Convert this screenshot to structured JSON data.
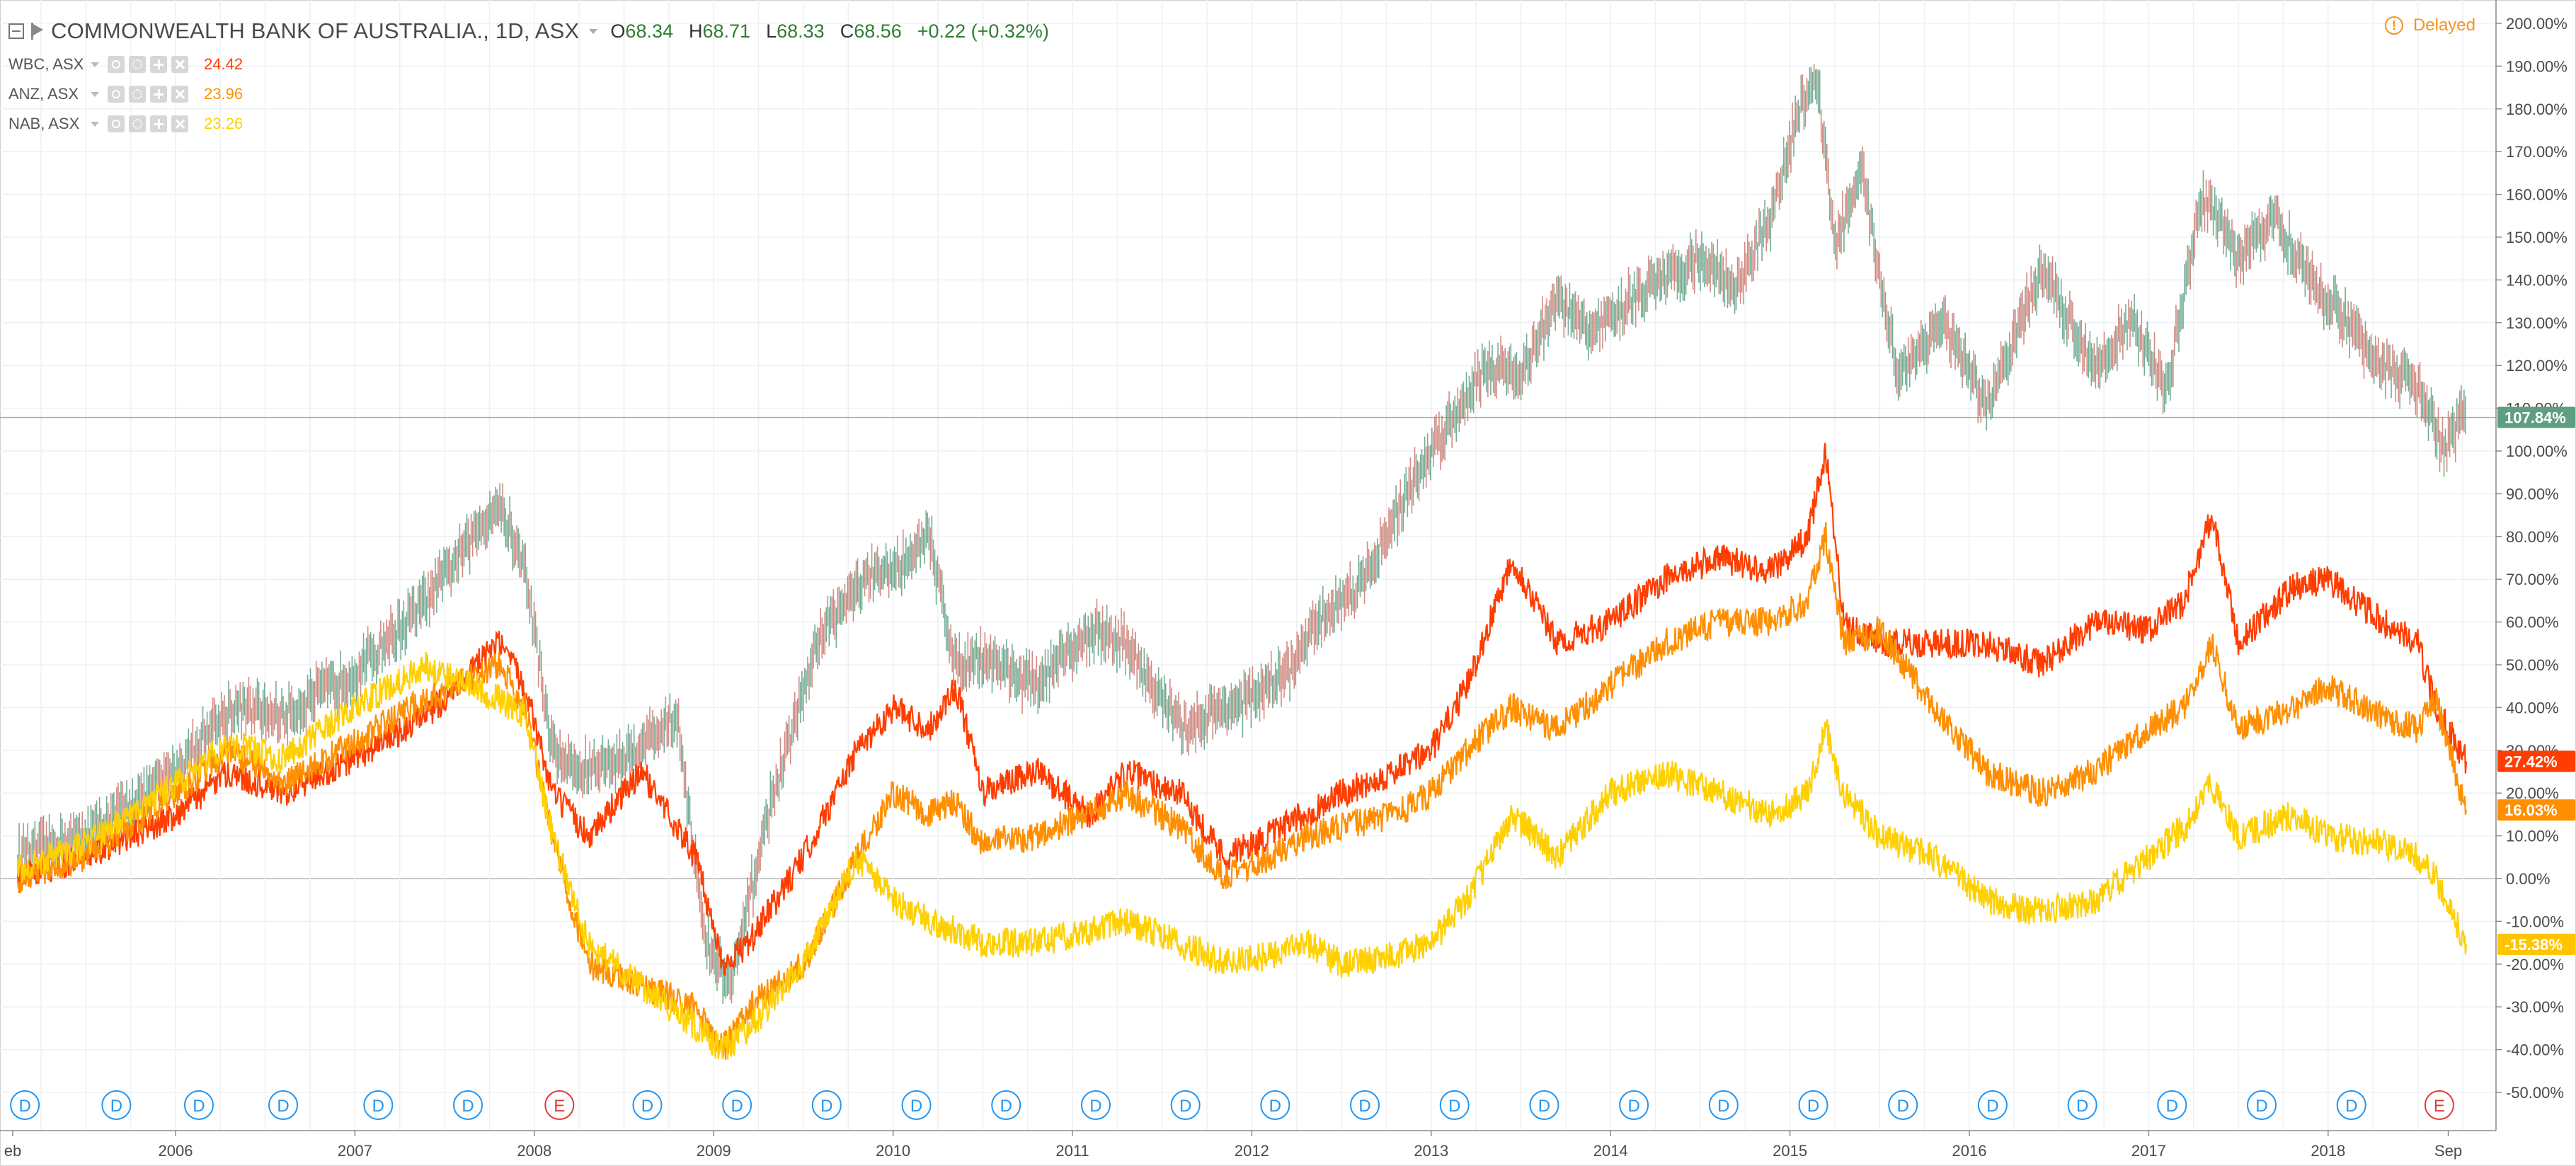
{
  "header": {
    "main_symbol": "COMMONWEALTH BANK OF AUSTRALIA., 1D, ASX",
    "open_label": "O",
    "open": "68.34",
    "high_label": "H",
    "high": "68.71",
    "low_label": "L",
    "low": "68.33",
    "close_label": "C",
    "close": "68.56",
    "change": "+0.22 (+0.32%)",
    "delayed": "Delayed"
  },
  "comparisons": [
    {
      "name": "WBC, ASX",
      "value": "24.42",
      "color": "#ff3d00"
    },
    {
      "name": "ANZ, ASX",
      "value": "23.96",
      "color": "#ff8f00"
    },
    {
      "name": "NAB, ASX",
      "value": "23.26",
      "color": "#ffd000"
    }
  ],
  "price_axis": {
    "ticks": [
      "200.00%",
      "190.00%",
      "180.00%",
      "170.00%",
      "160.00%",
      "150.00%",
      "140.00%",
      "130.00%",
      "120.00%",
      "110.00%",
      "100.00%",
      "90.00%",
      "80.00%",
      "70.00%",
      "60.00%",
      "50.00%",
      "40.00%",
      "30.00%",
      "20.00%",
      "10.00%",
      "0.00%",
      "-10.00%",
      "-20.00%",
      "-30.00%",
      "-40.00%",
      "-50.00%"
    ],
    "labels": [
      {
        "text": "107.84%",
        "value": 107.84,
        "color": "#5e9e82"
      },
      {
        "text": "27.42%",
        "value": 27.42,
        "color": "#ff3d00"
      },
      {
        "text": "16.03%",
        "value": 16.03,
        "color": "#ff8f00"
      },
      {
        "text": "-15.38%",
        "value": -15.38,
        "color": "#ffc400"
      }
    ]
  },
  "time_axis": {
    "labels": [
      {
        "text": "eb",
        "t": 2005.12
      },
      {
        "text": "2006",
        "t": 2006.0
      },
      {
        "text": "2007",
        "t": 2007.0
      },
      {
        "text": "2008",
        "t": 2008.0
      },
      {
        "text": "2009",
        "t": 2009.0
      },
      {
        "text": "2010",
        "t": 2010.0
      },
      {
        "text": "2011",
        "t": 2011.0
      },
      {
        "text": "2012",
        "t": 2012.0
      },
      {
        "text": "2013",
        "t": 2013.0
      },
      {
        "text": "2014",
        "t": 2014.0
      },
      {
        "text": "2015",
        "t": 2015.0
      },
      {
        "text": "2016",
        "t": 2016.0
      },
      {
        "text": "2017",
        "t": 2017.0
      },
      {
        "text": "2018",
        "t": 2018.0
      },
      {
        "text": "Sep",
        "t": 2018.67
      }
    ]
  },
  "events": [
    {
      "type": "D",
      "t": 2005.16
    },
    {
      "type": "D",
      "t": 2005.67
    },
    {
      "type": "D",
      "t": 2006.13
    },
    {
      "type": "D",
      "t": 2006.6
    },
    {
      "type": "D",
      "t": 2007.13
    },
    {
      "type": "D",
      "t": 2007.63
    },
    {
      "type": "E",
      "t": 2008.14
    },
    {
      "type": "D",
      "t": 2008.63
    },
    {
      "type": "D",
      "t": 2009.13
    },
    {
      "type": "D",
      "t": 2009.63
    },
    {
      "type": "D",
      "t": 2010.13
    },
    {
      "type": "D",
      "t": 2010.63
    },
    {
      "type": "D",
      "t": 2011.13
    },
    {
      "type": "D",
      "t": 2011.63
    },
    {
      "type": "D",
      "t": 2012.13
    },
    {
      "type": "D",
      "t": 2012.63
    },
    {
      "type": "D",
      "t": 2013.13
    },
    {
      "type": "D",
      "t": 2013.63
    },
    {
      "type": "D",
      "t": 2014.13
    },
    {
      "type": "D",
      "t": 2014.63
    },
    {
      "type": "D",
      "t": 2015.13
    },
    {
      "type": "D",
      "t": 2015.63
    },
    {
      "type": "D",
      "t": 2016.13
    },
    {
      "type": "D",
      "t": 2016.63
    },
    {
      "type": "D",
      "t": 2017.13
    },
    {
      "type": "D",
      "t": 2017.63
    },
    {
      "type": "D",
      "t": 2018.13
    },
    {
      "type": "E",
      "t": 2018.62
    }
  ],
  "chart_data": {
    "type": "line",
    "scale": "percent change from start",
    "x_range": [
      2005.1,
      2018.77
    ],
    "ylim": [
      -53,
      204
    ],
    "grid": true,
    "baseline": 0,
    "series": [
      {
        "name": "COMMONWEALTH BANK OF AUSTRALIA., 1D, ASX",
        "style": "candles",
        "color": "#7f7f7f",
        "x": [
          2005.12,
          2005.5,
          2006.0,
          2006.3,
          2006.6,
          2007.0,
          2007.4,
          2007.8,
          2007.95,
          2008.1,
          2008.25,
          2008.5,
          2008.8,
          2008.95,
          2009.1,
          2009.3,
          2009.6,
          2009.85,
          2010.0,
          2010.2,
          2010.35,
          2010.5,
          2010.8,
          2011.1,
          2011.3,
          2011.6,
          2011.85,
          2012.0,
          2012.2,
          2012.4,
          2012.6,
          2012.8,
          2013.0,
          2013.3,
          2013.5,
          2013.7,
          2013.9,
          2014.2,
          2014.5,
          2014.7,
          2014.9,
          2015.05,
          2015.15,
          2015.25,
          2015.4,
          2015.6,
          2015.85,
          2016.1,
          2016.4,
          2016.7,
          2016.9,
          2017.1,
          2017.3,
          2017.5,
          2017.7,
          2017.9,
          2018.1,
          2018.3,
          2018.5,
          2018.65,
          2018.77
        ],
        "y": [
          5,
          10,
          25,
          40,
          38,
          48,
          65,
          88,
          72,
          30,
          25,
          28,
          38,
          -15,
          -25,
          15,
          58,
          70,
          72,
          80,
          50,
          52,
          45,
          58,
          55,
          35,
          40,
          42,
          48,
          62,
          68,
          85,
          100,
          120,
          118,
          135,
          128,
          138,
          145,
          138,
          155,
          180,
          188,
          148,
          165,
          118,
          130,
          110,
          142,
          120,
          130,
          115,
          160,
          145,
          155,
          140,
          130,
          120,
          115,
          100,
          110
        ]
      },
      {
        "name": "WBC, ASX",
        "color": "#ff3d00",
        "x": [
          2005.12,
          2005.5,
          2006.0,
          2006.3,
          2006.6,
          2007.0,
          2007.4,
          2007.8,
          2007.95,
          2008.1,
          2008.3,
          2008.6,
          2008.9,
          2009.05,
          2009.2,
          2009.5,
          2009.8,
          2010.0,
          2010.2,
          2010.35,
          2010.5,
          2010.8,
          2011.1,
          2011.3,
          2011.6,
          2011.85,
          2012.1,
          2012.3,
          2012.5,
          2012.8,
          2013.0,
          2013.2,
          2013.45,
          2013.7,
          2014.0,
          2014.3,
          2014.6,
          2014.9,
          2015.1,
          2015.2,
          2015.3,
          2015.5,
          2015.8,
          2016.1,
          2016.4,
          2016.7,
          2017.0,
          2017.2,
          2017.35,
          2017.5,
          2017.8,
          2018.0,
          2018.3,
          2018.5,
          2018.6,
          2018.77
        ],
        "y": [
          0,
          5,
          15,
          25,
          20,
          28,
          38,
          55,
          45,
          20,
          10,
          25,
          5,
          -20,
          -15,
          5,
          30,
          40,
          35,
          45,
          20,
          25,
          15,
          25,
          20,
          5,
          10,
          15,
          20,
          25,
          30,
          45,
          75,
          55,
          60,
          70,
          75,
          72,
          80,
          100,
          60,
          55,
          55,
          55,
          50,
          60,
          58,
          65,
          85,
          55,
          68,
          70,
          60,
          55,
          40,
          27.42
        ]
      },
      {
        "name": "ANZ, ASX",
        "color": "#ff8f00",
        "x": [
          2005.12,
          2005.5,
          2006.0,
          2006.3,
          2006.6,
          2007.0,
          2007.4,
          2007.8,
          2007.95,
          2008.1,
          2008.3,
          2008.6,
          2008.9,
          2009.05,
          2009.2,
          2009.5,
          2009.8,
          2010.0,
          2010.2,
          2010.35,
          2010.5,
          2010.8,
          2011.1,
          2011.3,
          2011.6,
          2011.85,
          2012.1,
          2012.3,
          2012.5,
          2012.8,
          2013.0,
          2013.2,
          2013.45,
          2013.7,
          2014.0,
          2014.3,
          2014.6,
          2014.9,
          2015.1,
          2015.2,
          2015.3,
          2015.5,
          2015.8,
          2016.1,
          2016.4,
          2016.7,
          2017.0,
          2017.2,
          2017.35,
          2017.5,
          2017.8,
          2018.0,
          2018.3,
          2018.5,
          2018.6,
          2018.77
        ],
        "y": [
          0,
          5,
          20,
          30,
          22,
          32,
          42,
          50,
          40,
          10,
          -20,
          -25,
          -30,
          -40,
          -30,
          -20,
          5,
          20,
          15,
          18,
          8,
          10,
          15,
          20,
          12,
          0,
          5,
          10,
          12,
          15,
          20,
          30,
          40,
          35,
          45,
          55,
          60,
          60,
          65,
          80,
          55,
          58,
          40,
          25,
          20,
          25,
          35,
          40,
          55,
          35,
          40,
          45,
          38,
          35,
          42,
          16.03
        ]
      },
      {
        "name": "NAB, ASX",
        "color": "#ffd000",
        "x": [
          2005.12,
          2005.5,
          2006.0,
          2006.3,
          2006.6,
          2007.0,
          2007.4,
          2007.8,
          2007.95,
          2008.1,
          2008.3,
          2008.6,
          2008.9,
          2009.05,
          2009.2,
          2009.5,
          2009.8,
          2010.0,
          2010.2,
          2010.35,
          2010.5,
          2010.8,
          2011.1,
          2011.3,
          2011.6,
          2011.85,
          2012.1,
          2012.3,
          2012.5,
          2012.8,
          2013.0,
          2013.2,
          2013.45,
          2013.7,
          2014.0,
          2014.3,
          2014.6,
          2014.9,
          2015.1,
          2015.2,
          2015.3,
          2015.5,
          2015.8,
          2016.1,
          2016.4,
          2016.7,
          2017.0,
          2017.2,
          2017.35,
          2017.5,
          2017.8,
          2018.0,
          2018.3,
          2018.5,
          2018.6,
          2018.77
        ],
        "y": [
          2,
          8,
          22,
          32,
          28,
          40,
          50,
          42,
          38,
          10,
          -15,
          -25,
          -35,
          -40,
          -35,
          -20,
          5,
          -5,
          -10,
          -12,
          -15,
          -15,
          -12,
          -10,
          -15,
          -20,
          -18,
          -15,
          -20,
          -18,
          -15,
          -5,
          15,
          5,
          20,
          25,
          20,
          15,
          20,
          35,
          20,
          10,
          5,
          -5,
          -8,
          -5,
          5,
          12,
          22,
          10,
          15,
          10,
          8,
          5,
          0,
          -15.38
        ]
      }
    ]
  }
}
